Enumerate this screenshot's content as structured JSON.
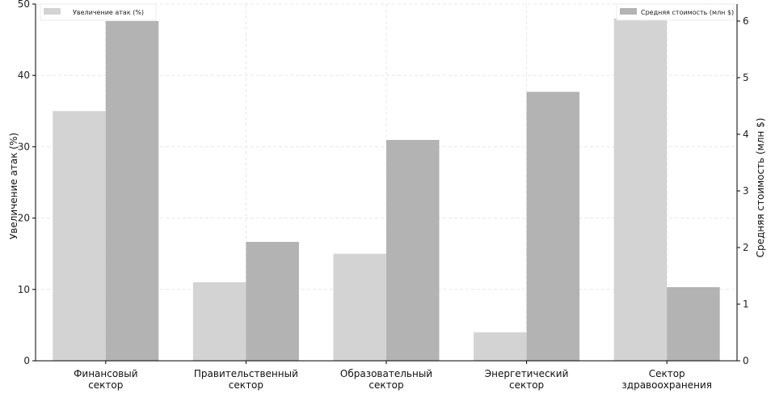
{
  "chart_data": {
    "type": "bar",
    "categories": [
      [
        "Финансовый",
        "сектор"
      ],
      [
        "Правительственный",
        "сектор"
      ],
      [
        "Образовательный",
        "сектор"
      ],
      [
        "Энергетический",
        "сектор"
      ],
      [
        "Сектор",
        "здравоохранения"
      ]
    ],
    "series": [
      {
        "name": "Увеличение атак (%)",
        "axis": "left",
        "color": "#d3d3d3",
        "values": [
          35,
          11,
          15,
          4,
          48
        ]
      },
      {
        "name": "Средняя стоимость (млн $)",
        "axis": "right",
        "color": "#b3b3b3",
        "values": [
          6.0,
          2.1,
          3.9,
          4.75,
          1.3
        ]
      }
    ],
    "ylabel": "Увеличение атак (%)",
    "ylabel_right": "Средняя стоимость (млн $)",
    "ylim": [
      0,
      50
    ],
    "ylim_right": [
      0,
      6.3
    ],
    "yticks": [
      0,
      10,
      20,
      30,
      40,
      50
    ],
    "yticks_right": [
      0,
      1,
      2,
      3,
      4,
      5,
      6
    ],
    "grid": true,
    "legend_left_placement": "top-left",
    "legend_right_placement": "top-right"
  }
}
